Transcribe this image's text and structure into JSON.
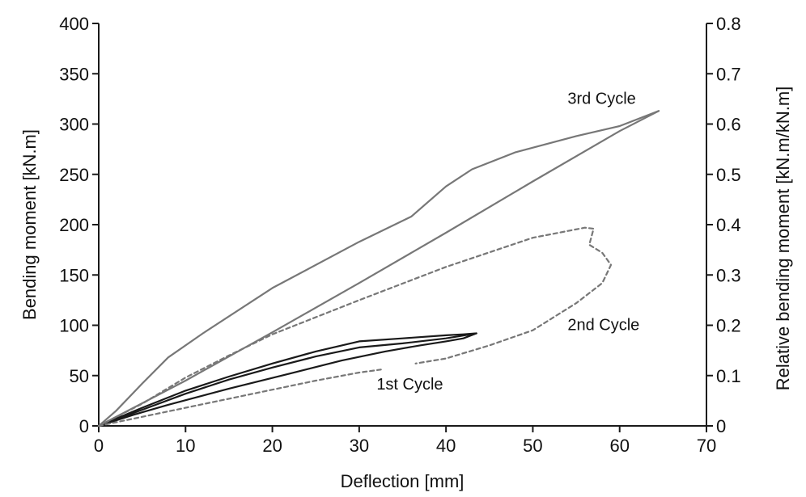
{
  "chart_data": {
    "type": "line",
    "xlabel": "Deflection [mm]",
    "ylabel": "Bending moment [kN.m]",
    "y2label": "Relative bending moment [kN.m/kN.m]",
    "xlim": [
      0,
      70
    ],
    "ylim": [
      0,
      400
    ],
    "y2lim": [
      0,
      0.8
    ],
    "xticks": [
      0,
      10,
      20,
      30,
      40,
      50,
      60,
      70
    ],
    "yticks": [
      0,
      50,
      100,
      150,
      200,
      250,
      300,
      350,
      400
    ],
    "y2ticks": [
      "0",
      "0.1",
      "0.2",
      "0.3",
      "0.4",
      "0.5",
      "0.6",
      "0.7",
      "0.8"
    ],
    "grid": false,
    "annotations": [
      {
        "text": "3rd Cycle",
        "x": 54,
        "y": 320
      },
      {
        "text": "2nd Cycle",
        "x": 54,
        "y": 95
      },
      {
        "text": "1st Cycle",
        "x": 32,
        "y": 36
      }
    ],
    "series": [
      {
        "style": "solid",
        "color": "#1a1a1a",
        "points": [
          [
            0,
            0
          ],
          [
            5,
            18
          ],
          [
            10,
            35
          ],
          [
            15,
            49
          ],
          [
            20,
            62
          ],
          [
            25,
            74
          ],
          [
            30,
            84
          ],
          [
            35,
            87
          ],
          [
            40,
            90
          ],
          [
            42,
            91
          ],
          [
            43.5,
            92
          ],
          [
            42,
            87
          ],
          [
            40,
            84
          ],
          [
            37,
            80
          ],
          [
            33,
            74
          ],
          [
            28,
            65
          ],
          [
            22,
            52
          ],
          [
            15,
            37
          ],
          [
            8,
            21
          ],
          [
            4,
            11
          ],
          [
            1.5,
            4
          ],
          [
            0,
            0
          ]
        ]
      },
      {
        "style": "solid",
        "color": "#1a1a1a",
        "points": [
          [
            0,
            0
          ],
          [
            5,
            16
          ],
          [
            10,
            32
          ],
          [
            15,
            46
          ],
          [
            20,
            58
          ],
          [
            25,
            69
          ],
          [
            30,
            78
          ],
          [
            35,
            82
          ],
          [
            40,
            87
          ],
          [
            43.5,
            92
          ]
        ]
      },
      {
        "style": "dashed",
        "color": "#777777",
        "points": [
          [
            0,
            0
          ],
          [
            5,
            9
          ],
          [
            10,
            18
          ],
          [
            15,
            27
          ],
          [
            20,
            36
          ],
          [
            25,
            45
          ],
          [
            30,
            53
          ],
          [
            32.5,
            56
          ]
        ]
      },
      {
        "style": "dashed",
        "color": "#777777",
        "points": [
          [
            0,
            0
          ],
          [
            5,
            22
          ],
          [
            10,
            48
          ],
          [
            15,
            70
          ],
          [
            20,
            91
          ],
          [
            30,
            125
          ],
          [
            40,
            158
          ],
          [
            50,
            187
          ],
          [
            56,
            197
          ],
          [
            57,
            196
          ],
          [
            56.5,
            180
          ],
          [
            58,
            172
          ],
          [
            59,
            160
          ],
          [
            58,
            142
          ],
          [
            55,
            122
          ],
          [
            50,
            95
          ],
          [
            45,
            80
          ],
          [
            40,
            67
          ],
          [
            36.5,
            62
          ]
        ]
      },
      {
        "style": "solid",
        "color": "#777777",
        "points": [
          [
            0,
            0
          ],
          [
            2,
            15
          ],
          [
            5,
            42
          ],
          [
            8,
            68
          ],
          [
            12,
            92
          ],
          [
            20,
            137
          ],
          [
            30,
            183
          ],
          [
            36,
            208
          ],
          [
            40,
            238
          ],
          [
            43,
            255
          ],
          [
            48,
            272
          ],
          [
            55,
            288
          ],
          [
            60,
            298
          ],
          [
            64.5,
            313
          ]
        ]
      },
      {
        "style": "solid",
        "color": "#777777",
        "points": [
          [
            0,
            0
          ],
          [
            10,
            45
          ],
          [
            20,
            93
          ],
          [
            30,
            142
          ],
          [
            40,
            192
          ],
          [
            50,
            243
          ],
          [
            60,
            293
          ],
          [
            64.5,
            313
          ]
        ]
      }
    ]
  }
}
